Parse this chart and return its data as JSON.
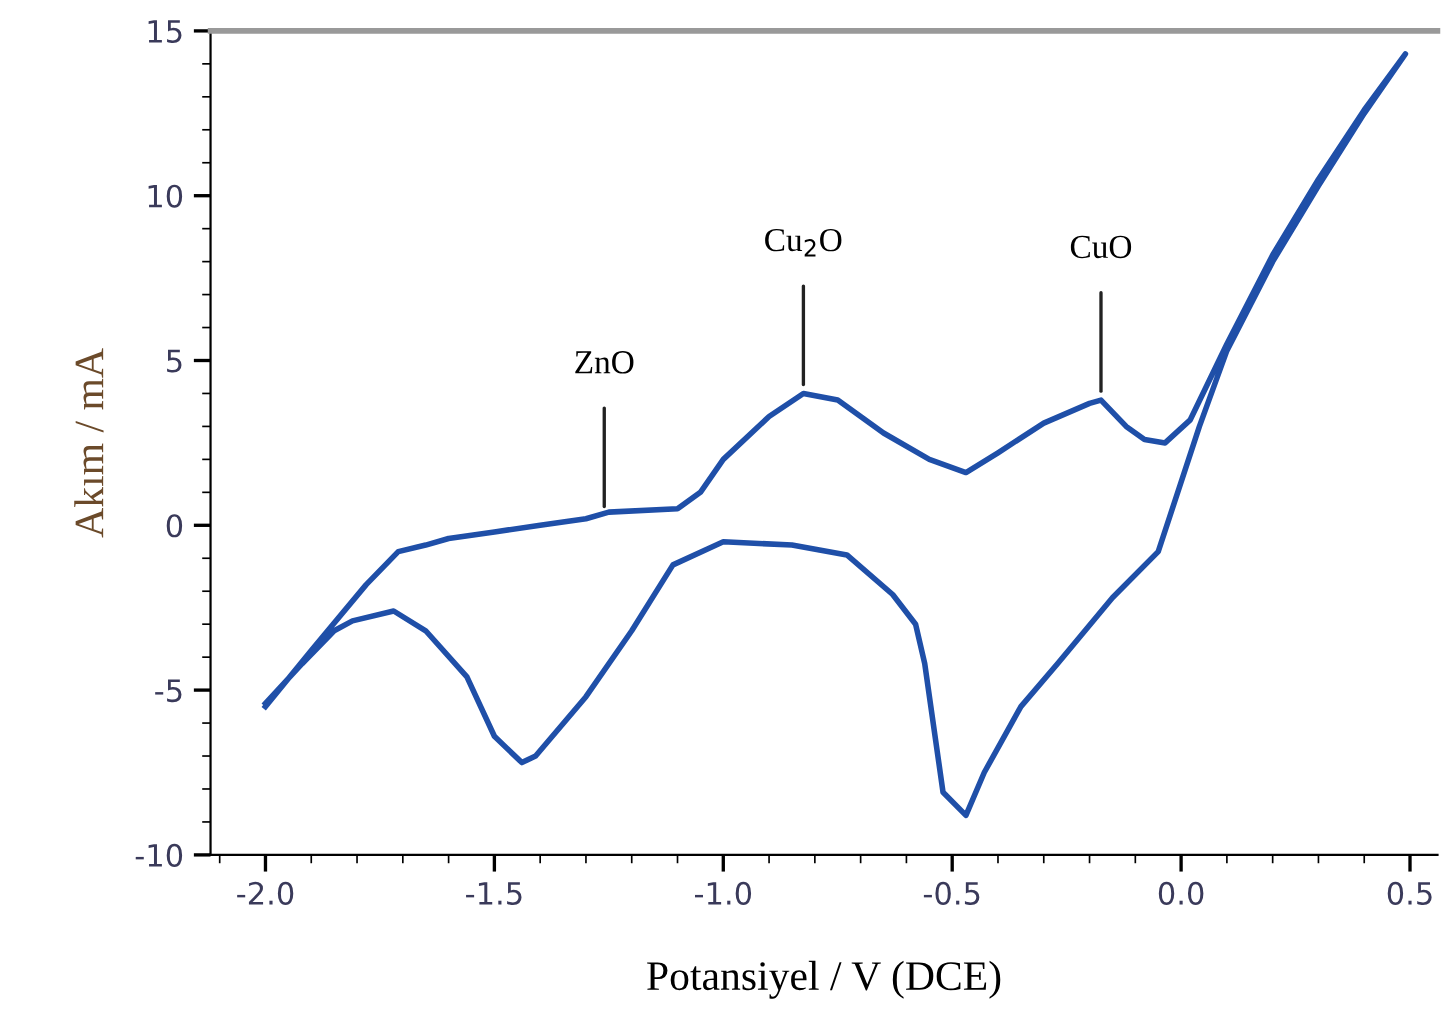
{
  "chart_data": {
    "type": "line",
    "xlabel": "Potansiyel / V (DCE)",
    "ylabel": "Akım / mA",
    "series": [
      {
        "color": "#1f4fa8",
        "x": [
          -2.0,
          -1.9,
          -1.78,
          -1.71,
          -1.65,
          -1.6,
          -1.5,
          -1.4,
          -1.3,
          -1.25,
          -1.1,
          -1.05,
          -1.0,
          -0.9,
          -0.825,
          -0.75,
          -0.65,
          -0.55,
          -0.47,
          -0.4,
          -0.3,
          -0.2,
          -0.175,
          -0.12,
          -0.08,
          -0.035,
          0.02,
          0.1,
          0.2,
          0.3,
          0.4,
          0.49,
          0.4,
          0.3,
          0.2,
          0.1,
          0.04,
          -0.05,
          -0.15,
          -0.27,
          -0.35,
          -0.43,
          -0.47,
          -0.52,
          -0.56,
          -0.58,
          -0.63,
          -0.73,
          -0.85,
          -1.0,
          -1.11,
          -1.2,
          -1.3,
          -1.41,
          -1.44,
          -1.5,
          -1.56,
          -1.65,
          -1.72,
          -1.81,
          -1.85,
          -1.92,
          -2.0
        ],
        "values": [
          -5.5,
          -3.8,
          -1.8,
          -0.8,
          -0.6,
          -0.4,
          -0.2,
          0.0,
          0.2,
          0.4,
          0.5,
          1.0,
          2.0,
          3.3,
          4.0,
          3.8,
          2.8,
          2.0,
          1.6,
          2.2,
          3.1,
          3.7,
          3.8,
          3.0,
          2.6,
          2.5,
          3.2,
          5.5,
          8.2,
          10.5,
          12.6,
          14.3,
          12.5,
          10.3,
          8.0,
          5.3,
          3.0,
          -0.8,
          -2.2,
          -4.2,
          -5.5,
          -7.5,
          -8.8,
          -8.1,
          -4.2,
          -3.0,
          -2.1,
          -0.9,
          -0.6,
          -0.5,
          -1.2,
          -3.2,
          -5.2,
          -7.0,
          -7.2,
          -6.4,
          -4.6,
          -3.2,
          -2.6,
          -2.9,
          -3.2,
          -4.2,
          -5.4
        ]
      }
    ],
    "annotations": [
      {
        "text": "ZnO",
        "x": -1.26,
        "y": 0.4
      },
      {
        "text": "Cu$_{2}$O",
        "x": -0.825,
        "y": 4.1
      },
      {
        "text": "CuO",
        "x": -0.175,
        "y": 3.9
      }
    ],
    "xlim": [
      -2.12,
      0.56
    ],
    "ylim": [
      -10,
      15
    ],
    "xticks": [
      {
        "value": -2.0,
        "label": "-2.0"
      },
      {
        "value": -1.5,
        "label": "-1.5"
      },
      {
        "value": -1.0,
        "label": "-1.0"
      },
      {
        "value": -0.5,
        "label": "-0.5"
      },
      {
        "value": 0.0,
        "label": "0.0"
      },
      {
        "value": 0.5,
        "label": "0.5"
      }
    ],
    "yticks": [
      -10,
      -5,
      0,
      5,
      10,
      15
    ],
    "grid": false,
    "line_style": "solid",
    "marker": "none"
  }
}
